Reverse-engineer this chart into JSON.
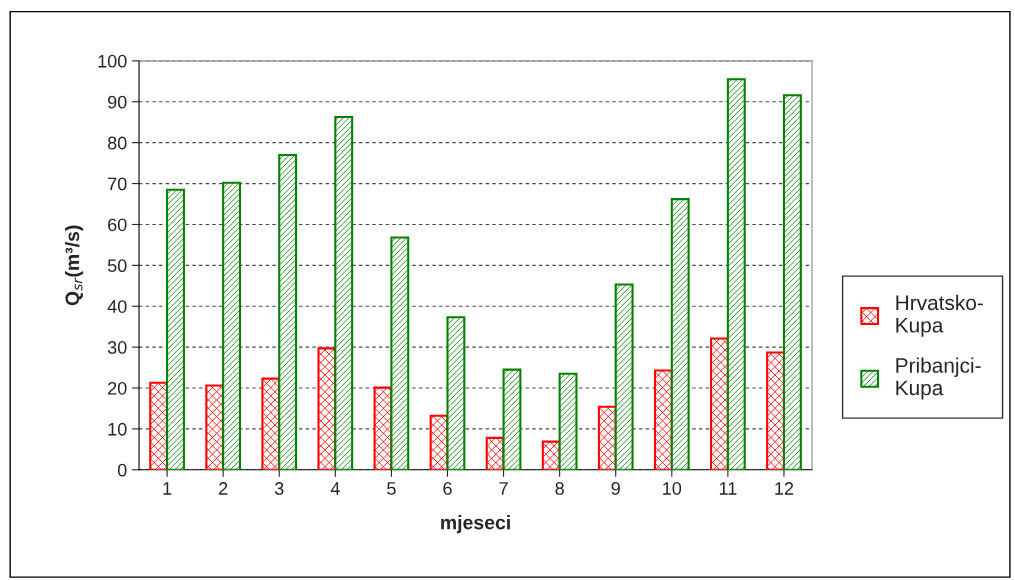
{
  "chart_data": {
    "type": "bar",
    "xlabel": "mjeseci",
    "ylabel": "Q$_{sr}$(m³/s)",
    "categories": [
      "1",
      "2",
      "3",
      "4",
      "5",
      "6",
      "7",
      "8",
      "9",
      "10",
      "11",
      "12"
    ],
    "series": [
      {
        "name": "Hrvatsko-\nKupa",
        "color": "#ff0000",
        "values": [
          21.3,
          20.6,
          22.3,
          29.7,
          20.1,
          13.2,
          7.8,
          6.9,
          15.4,
          24.3,
          32.1,
          28.7
        ]
      },
      {
        "name": "Pribanjci-\nKupa",
        "color": "#008000",
        "values": [
          68.5,
          70.2,
          77.0,
          86.3,
          56.8,
          37.3,
          24.5,
          23.5,
          45.3,
          66.2,
          95.5,
          91.6
        ]
      }
    ],
    "ylim": [
      0,
      100
    ],
    "yticks": [
      0,
      10,
      20,
      30,
      40,
      50,
      60,
      70,
      80,
      90,
      100
    ],
    "grid": "y",
    "legend": "right"
  }
}
